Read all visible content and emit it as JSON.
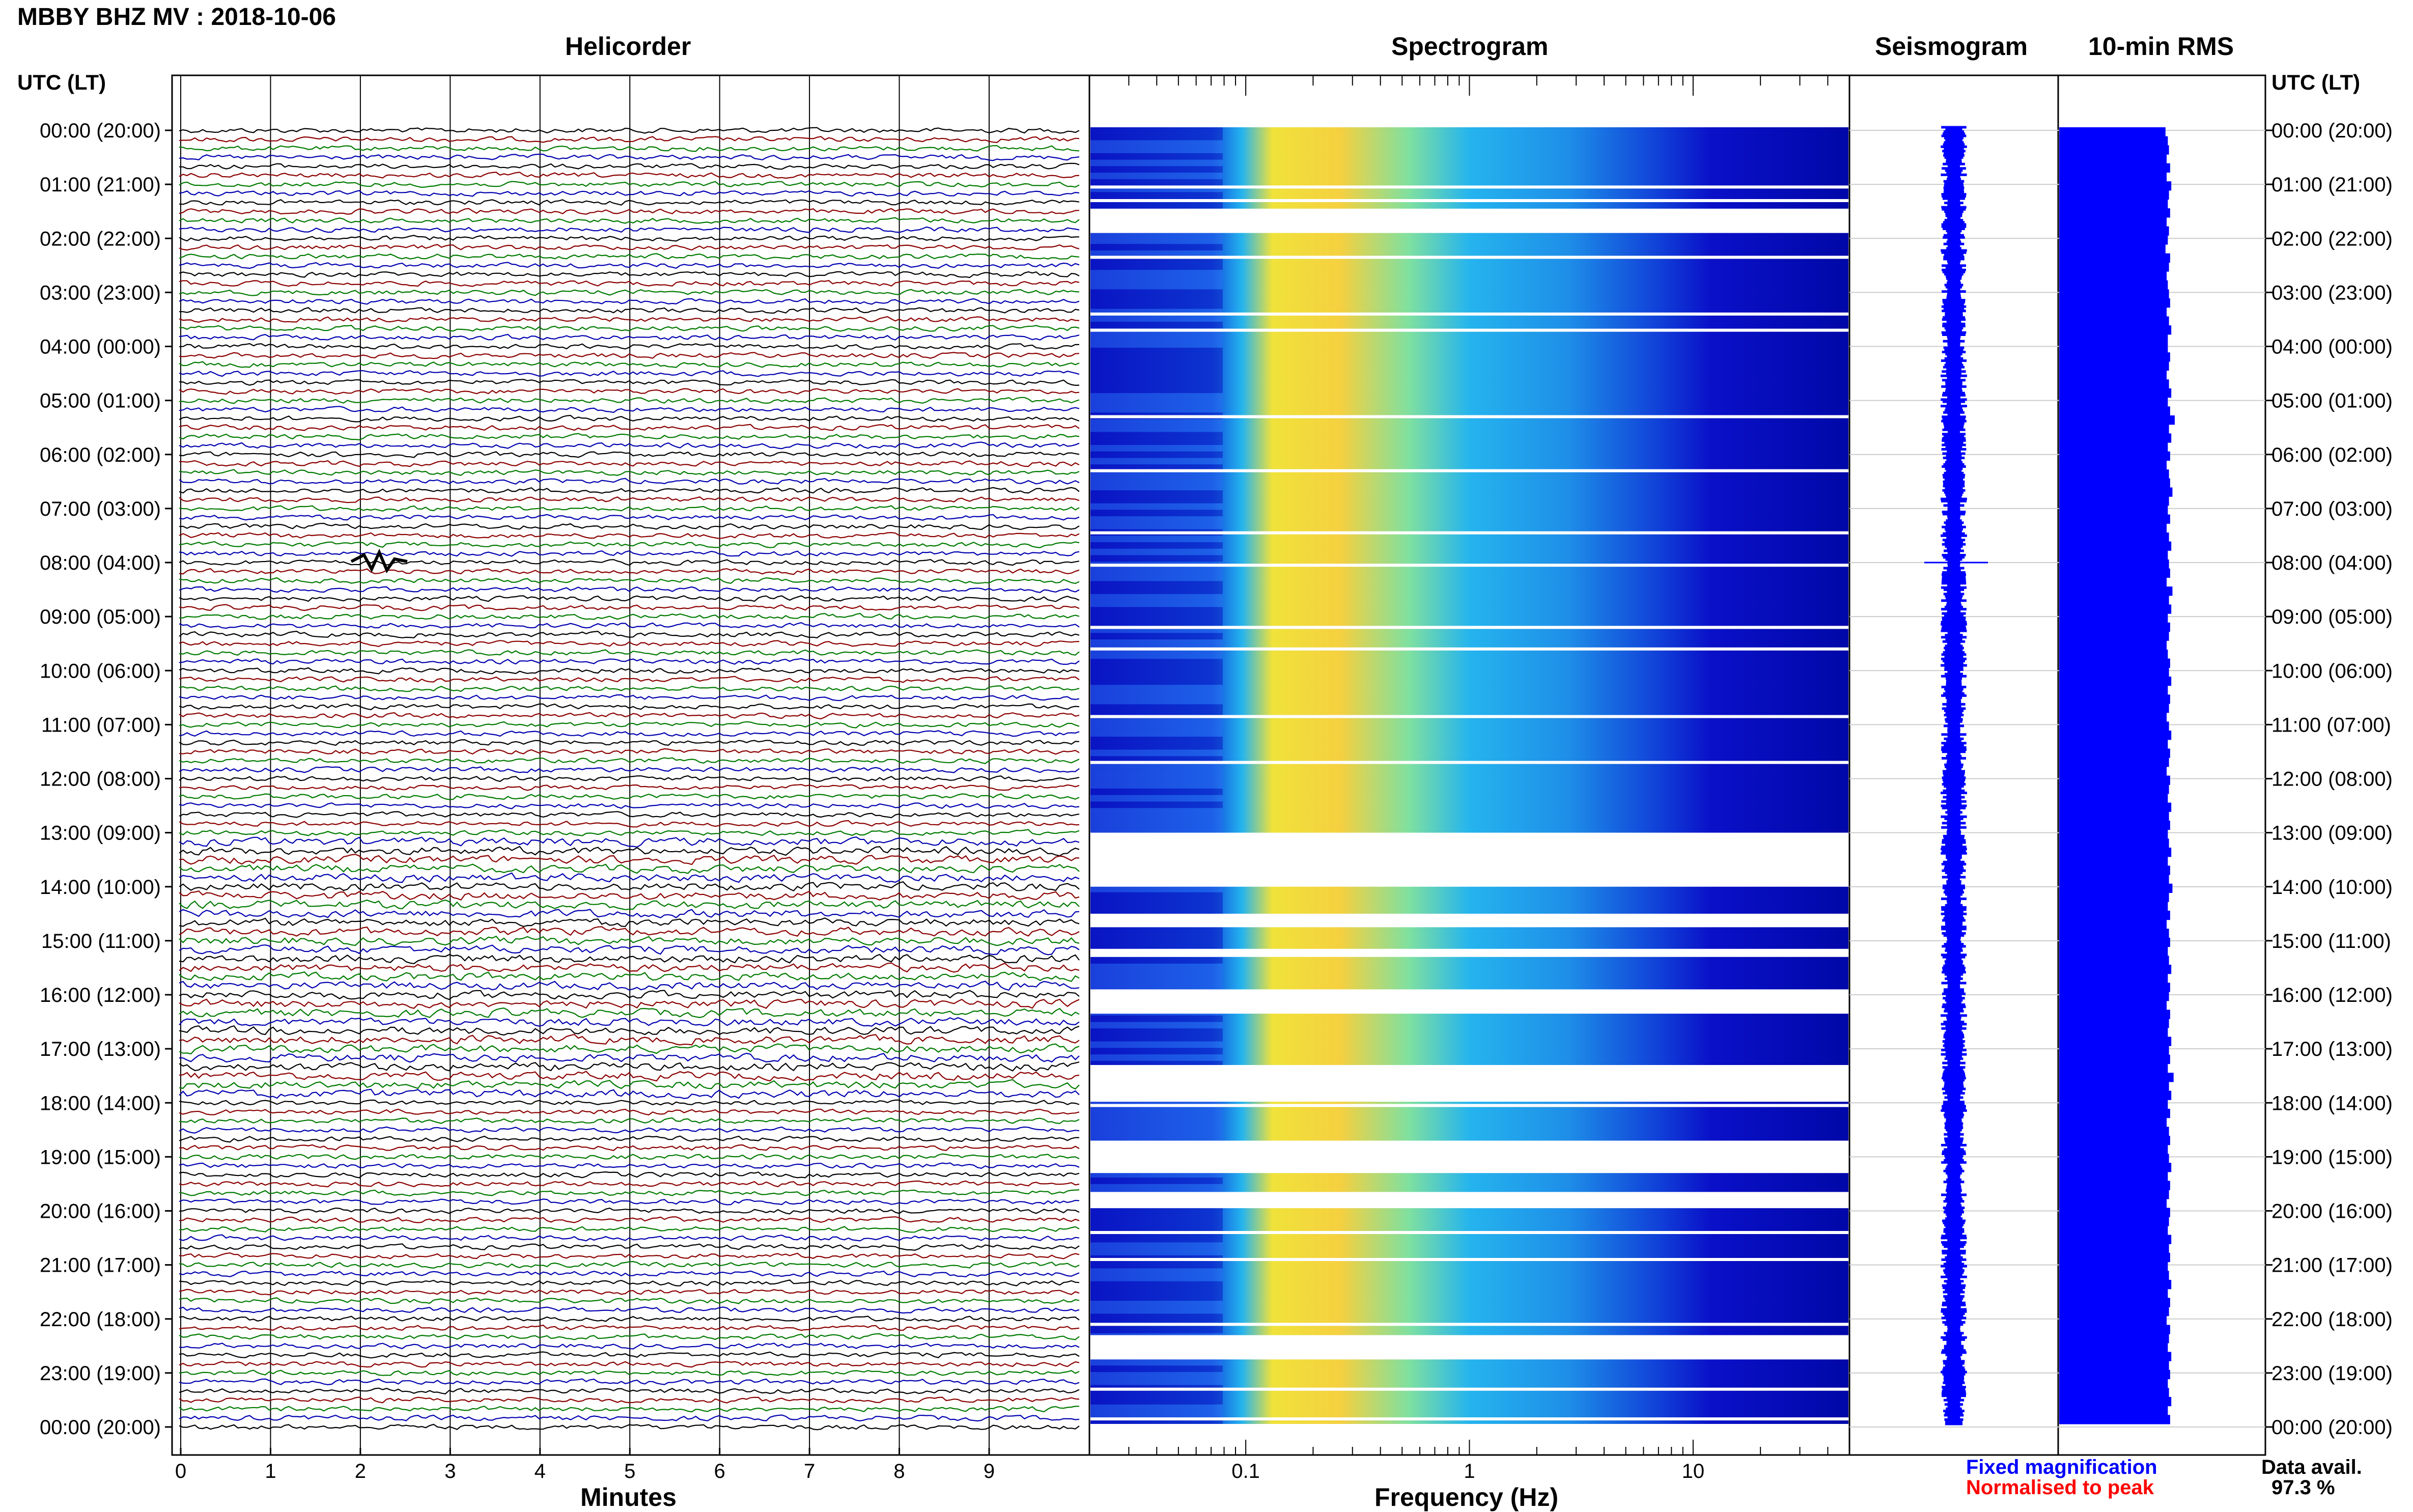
{
  "header": {
    "title": "MBBY BHZ MV : 2018-10-06"
  },
  "panels": {
    "helicorder": "Helicorder",
    "spectrogram": "Spectrogram",
    "seismogram": "Seismogram",
    "rms": "10-min RMS"
  },
  "axis": {
    "utc_label": "UTC (LT)",
    "minutes_label": "Minutes",
    "frequency_label": "Frequency (Hz)"
  },
  "footer": {
    "fixed_mag": "Fixed magnification",
    "normalised": "Normalised to peak",
    "data_avail_label": "Data avail.",
    "data_avail_value": "97.3 %"
  },
  "colors": {
    "trace_colors": [
      "#000000",
      "#8b0000",
      "#007a00",
      "#0000b0"
    ],
    "spectrogram_dark": "#0a10c8",
    "spectrogram_mid": "#25b4ee",
    "spectrogram_hot": "#f0e23a",
    "rms": "#0000ff",
    "fixed_mag": "#0000ff",
    "normalised": "#ff0000"
  },
  "chart_data": {
    "type": "heatmap",
    "time_labels": [
      "00:00 (20:00)",
      "01:00 (21:00)",
      "02:00 (22:00)",
      "03:00 (23:00)",
      "04:00 (00:00)",
      "05:00 (01:00)",
      "06:00 (02:00)",
      "07:00 (03:00)",
      "08:00 (04:00)",
      "09:00 (05:00)",
      "10:00 (06:00)",
      "11:00 (07:00)",
      "12:00 (08:00)",
      "13:00 (09:00)",
      "14:00 (10:00)",
      "15:00 (11:00)",
      "16:00 (12:00)",
      "17:00 (13:00)",
      "18:00 (14:00)",
      "19:00 (15:00)",
      "20:00 (16:00)",
      "21:00 (17:00)",
      "22:00 (18:00)",
      "23:00 (19:00)",
      "00:00 (20:00)"
    ],
    "minute_ticks": [
      "0",
      "1",
      "2",
      "3",
      "4",
      "5",
      "6",
      "7",
      "8",
      "9"
    ],
    "minute_range": [
      0,
      10
    ],
    "frequency_ticks": [
      "0.1",
      "1",
      "10"
    ],
    "frequency_range": [
      0.02,
      50
    ],
    "frequency_scale": "log",
    "time_range_hours": [
      0,
      24
    ],
    "spectrogram_gaps_hours": [
      [
        1.45,
        1.9
      ],
      [
        13.0,
        14.0
      ],
      [
        14.5,
        14.75
      ],
      [
        15.15,
        15.3
      ],
      [
        15.9,
        16.35
      ],
      [
        17.3,
        17.98
      ],
      [
        18.7,
        19.3
      ],
      [
        19.65,
        19.95
      ],
      [
        22.3,
        22.75
      ]
    ],
    "rms_values_relative": [
      0.92,
      0.94,
      0.95,
      0.93,
      0.96,
      0.93,
      0.97,
      0.95,
      0.94,
      0.96,
      0.93,
      0.95,
      0.94,
      0.92,
      0.96,
      0.95,
      0.93,
      0.94,
      0.95,
      0.96,
      0.93,
      0.95,
      0.97,
      0.94,
      0.94,
      0.96,
      0.95,
      0.93,
      0.95,
      0.97,
      0.94,
      0.96,
      1.0,
      0.95,
      0.97,
      0.94,
      0.96,
      0.93,
      0.95,
      0.96,
      0.98,
      0.95,
      0.94,
      0.96,
      0.93,
      0.95,
      0.97,
      0.94,
      0.95,
      0.96,
      0.93,
      0.98,
      0.95,
      0.97,
      0.94,
      0.96,
      0.95,
      0.93,
      0.94,
      0.96,
      0.95,
      0.97,
      0.94,
      0.96,
      0.95,
      0.93,
      0.95,
      0.97,
      0.94,
      0.96,
      0.95,
      0.93,
      0.96,
      0.95,
      0.94,
      0.97,
      0.95,
      0.96,
      0.94,
      0.95,
      0.97,
      0.94,
      0.96,
      0.95,
      0.98,
      0.95,
      0.94,
      0.96,
      0.93,
      0.95,
      0.96,
      0.94,
      0.95,
      0.97,
      0.94,
      0.96,
      0.95,
      0.93,
      0.96,
      0.95,
      0.94,
      0.97,
      0.95,
      0.96,
      0.94,
      0.99,
      0.95,
      0.97,
      0.94,
      0.96,
      0.93,
      0.95,
      0.96,
      0.94,
      0.95,
      0.97,
      0.94,
      0.96,
      0.95,
      0.93,
      0.96,
      0.95,
      0.94,
      0.97,
      0.95,
      0.96,
      0.94,
      0.95,
      0.97,
      0.94,
      0.96,
      0.95,
      0.93,
      0.96,
      0.95,
      0.94,
      0.97,
      0.95,
      0.96,
      0.94,
      0.95,
      0.97,
      0.94,
      0.96
    ]
  }
}
